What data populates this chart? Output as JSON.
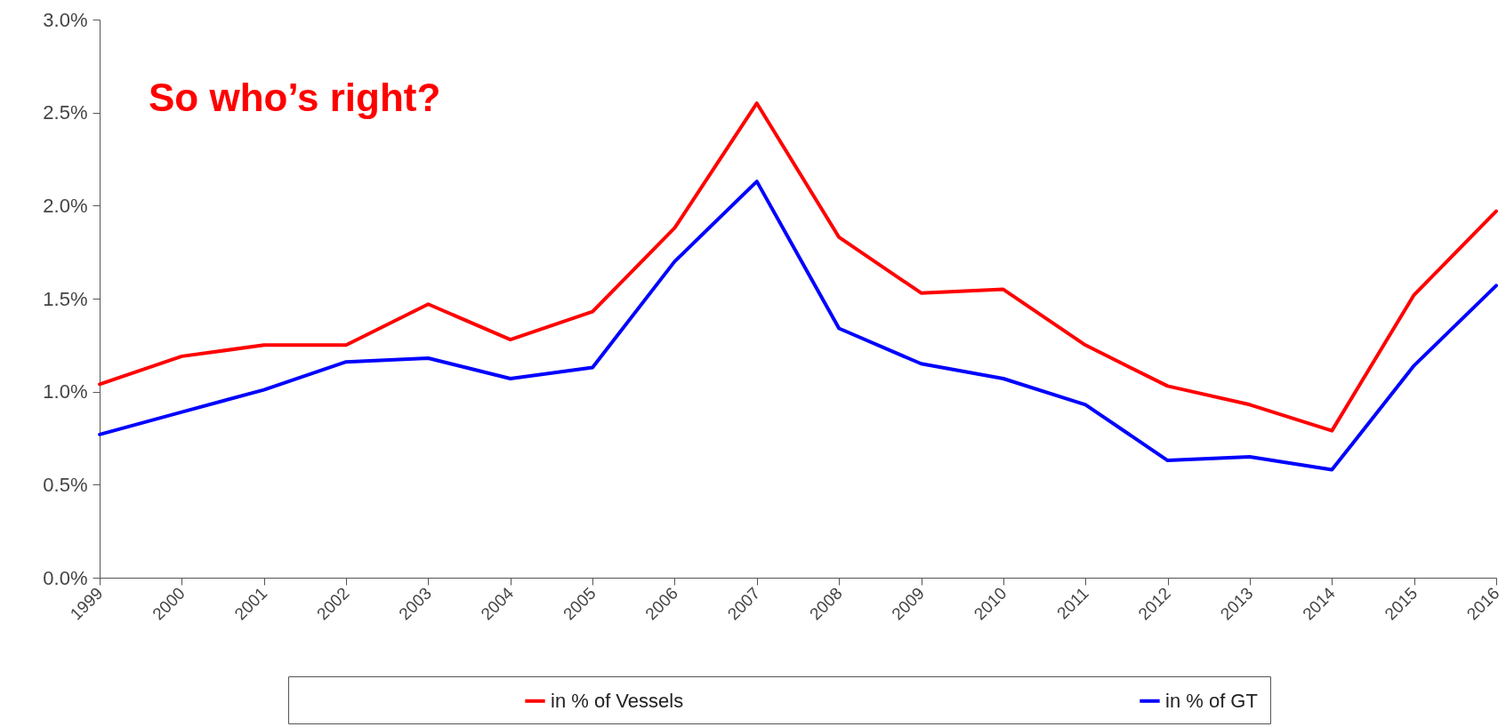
{
  "chart_data": {
    "type": "line",
    "categories": [
      "1999",
      "2000",
      "2001",
      "2002",
      "2003",
      "2004",
      "2005",
      "2006",
      "2007",
      "2008",
      "2009",
      "2010",
      "2011",
      "2012",
      "2013",
      "2014",
      "2015",
      "2016"
    ],
    "series": [
      {
        "name": "in % of Vessels",
        "color": "#ff0000",
        "values": [
          1.04,
          1.19,
          1.25,
          1.25,
          1.47,
          1.28,
          1.43,
          1.88,
          2.55,
          1.83,
          1.53,
          1.55,
          1.25,
          1.03,
          0.93,
          0.79,
          1.52,
          1.97
        ]
      },
      {
        "name": "in % of GT",
        "color": "#0000ff",
        "values": [
          0.77,
          0.89,
          1.01,
          1.16,
          1.18,
          1.07,
          1.13,
          1.7,
          2.13,
          1.34,
          1.15,
          1.07,
          0.93,
          0.63,
          0.65,
          0.58,
          1.14,
          1.57
        ]
      }
    ],
    "ylim": [
      0,
      3
    ],
    "yticks": [
      {
        "value": 0,
        "label": "0.0%"
      },
      {
        "value": 0.5,
        "label": "0.5%"
      },
      {
        "value": 1,
        "label": "1.0%"
      },
      {
        "value": 1.5,
        "label": "1.5%"
      },
      {
        "value": 2,
        "label": "2.0%"
      },
      {
        "value": 2.5,
        "label": "2.5%"
      },
      {
        "value": 3,
        "label": "3.0%"
      }
    ],
    "annotations": [
      "So who’s right?"
    ],
    "legend": "bottom",
    "grid": false,
    "marker": "none",
    "line_style": "solid"
  }
}
